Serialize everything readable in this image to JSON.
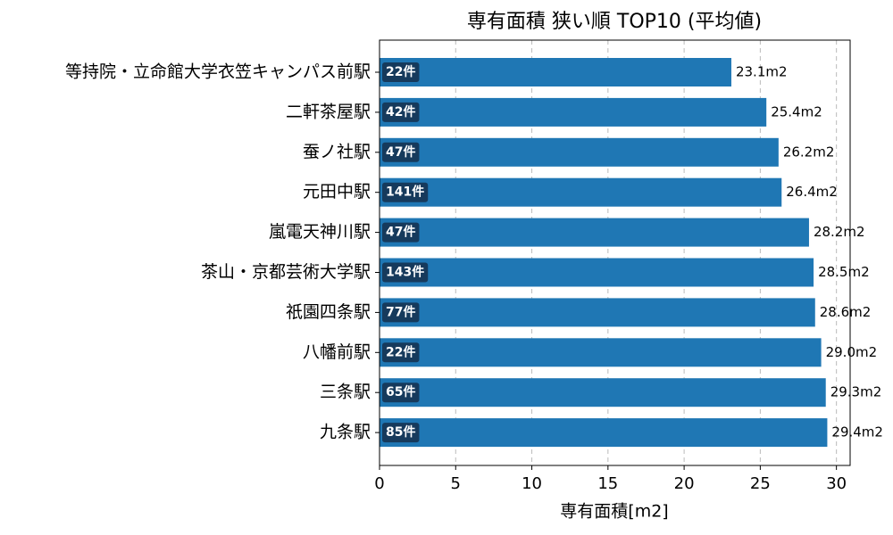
{
  "chart_data": {
    "type": "bar",
    "orientation": "horizontal",
    "title": "専有面積 狭い順 TOP10 (平均値)",
    "x_label": "専有面積[m2]",
    "categories": [
      "等持院・立命館大学衣笠キャンパス前駅",
      "二軒茶屋駅",
      "蚕ノ社駅",
      "元田中駅",
      "嵐電天神川駅",
      "茶山・京都芸術大学駅",
      "祇園四条駅",
      "八幡前駅",
      "三条駅",
      "九条駅"
    ],
    "values": [
      23.1,
      25.4,
      26.2,
      26.4,
      28.2,
      28.5,
      28.6,
      29.0,
      29.3,
      29.4
    ],
    "value_labels": [
      "23.1m2",
      "25.4m2",
      "26.2m2",
      "26.4m2",
      "28.2m2",
      "28.5m2",
      "28.6m2",
      "29.0m2",
      "29.3m2",
      "29.4m2"
    ],
    "count_labels": [
      "22件",
      "42件",
      "47件",
      "141件",
      "47件",
      "143件",
      "77件",
      "22件",
      "65件",
      "85件"
    ],
    "color": "#1f77b4",
    "xlim": [
      0,
      30.9
    ],
    "xticks": [
      0,
      5,
      10,
      15,
      20,
      25,
      30
    ],
    "grid": true
  }
}
